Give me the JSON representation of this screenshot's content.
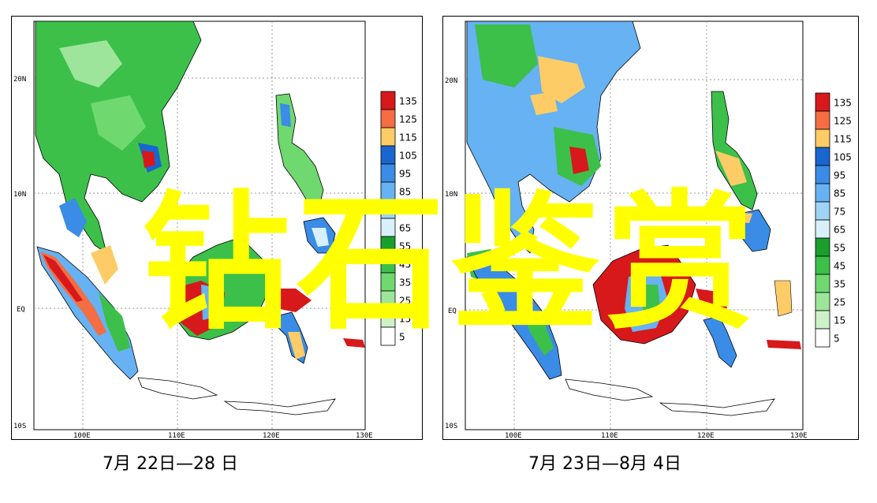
{
  "panels": [
    {
      "caption": "7月 22日—28 日",
      "lat_labels": [
        "20N",
        "10N",
        "EQ",
        "10S"
      ],
      "lon_labels": [
        "100E",
        "110E",
        "120E",
        "130E"
      ],
      "legend_values": [
        "135",
        "125",
        "115",
        "105",
        "95",
        "85",
        "75",
        "65",
        "55",
        "45",
        "35",
        "25",
        "15",
        "5"
      ]
    },
    {
      "caption": "7月 23日—8月 4日",
      "lat_labels": [
        "20N",
        "10N",
        "EQ",
        "10S"
      ],
      "lon_labels": [
        "100E",
        "110E",
        "120E",
        "130E"
      ],
      "legend_values": [
        "135",
        "125",
        "115",
        "105",
        "95",
        "85",
        "75",
        "65",
        "55",
        "45",
        "35",
        "25",
        "15",
        "5"
      ]
    }
  ],
  "legend_colors": [
    "#d7191c",
    "#f46d43",
    "#fdcc66",
    "#1a66d0",
    "#3a8ce6",
    "#66b2f2",
    "#9fd4f7",
    "#d8f0fb",
    "#1a9e2c",
    "#3cc04a",
    "#6fd86f",
    "#9de59a",
    "#cdf2c9",
    "#ffffff"
  ],
  "watermark": "钻石鉴赏"
}
